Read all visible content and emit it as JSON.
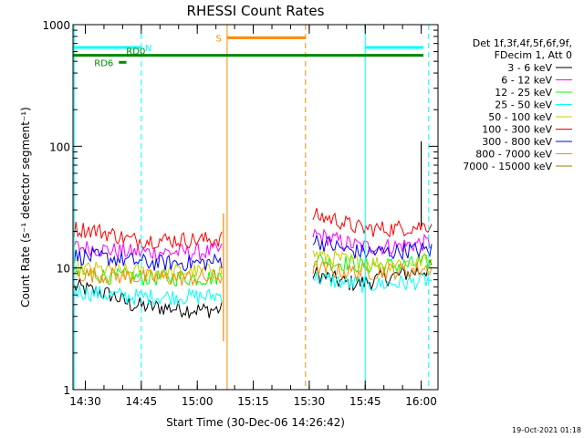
{
  "chart_data": {
    "type": "line",
    "title": "RHESSI Count Rates",
    "xlabel": "Start Time (30-Dec-06 14:26:42)",
    "ylabel": "Count Rate (s⁻¹ detector segment⁻¹)",
    "yscale": "log",
    "ylim": [
      1,
      1000
    ],
    "xlim": [
      "14:26:42",
      "16:04:30"
    ],
    "x_ticks": [
      "14:30",
      "14:45",
      "15:00",
      "15:15",
      "15:30",
      "15:45",
      "16:00"
    ],
    "y_ticks": [
      "1",
      "10",
      "100",
      "1000"
    ],
    "legend_header": [
      "Det 1f,3f,4f,5f,6f,9f,",
      "FDecim 1, Att 0"
    ],
    "legend_position": "right",
    "timestamp": "19-Oct-2021 01:18",
    "data_gap": [
      "15:07",
      "15:29"
    ],
    "series": [
      {
        "name": "3 - 6 keV",
        "color": "#000000",
        "values_before_gap": [
          7.0,
          6.5,
          6.0,
          5.0,
          4.8,
          4.7,
          4.6,
          4.5,
          4.6
        ],
        "values_after_gap": [
          9.0,
          8.5,
          8.0,
          7.5,
          7.5,
          8.0,
          8.5,
          9.0,
          9.5,
          10.0
        ]
      },
      {
        "name": "6 - 12 keV",
        "color": "#ff00ff",
        "values_before_gap": [
          15,
          14.5,
          14,
          13.5,
          13.5,
          13.5,
          13.5,
          13.5,
          14
        ],
        "values_after_gap": [
          19,
          18,
          17,
          16,
          15,
          15,
          15,
          15.5,
          16,
          16
        ]
      },
      {
        "name": "12 - 25 keV",
        "color": "#00ff00",
        "values_before_gap": [
          9,
          8.8,
          8.5,
          8.5,
          8.3,
          8.3,
          8.3,
          8.3,
          8.5
        ],
        "values_after_gap": [
          12,
          11.5,
          11,
          11,
          10.5,
          10.5,
          10.5,
          10.5,
          11,
          11
        ]
      },
      {
        "name": "25 - 50 keV",
        "color": "#00ffff",
        "values_before_gap": [
          6.5,
          6.2,
          6.0,
          5.8,
          5.8,
          5.8,
          5.8,
          5.8,
          6.0
        ],
        "values_after_gap": [
          8.5,
          8.0,
          7.8,
          7.5,
          7.3,
          7.3,
          7.5,
          7.5,
          7.8,
          8.0
        ]
      },
      {
        "name": "50 - 100 keV",
        "color": "#cccc00",
        "values_before_gap": [
          10,
          9.7,
          9.5,
          9.3,
          9.3,
          9.3,
          9.3,
          9.3,
          9.5
        ],
        "values_after_gap": [
          13,
          12.5,
          12,
          11.5,
          11,
          11,
          11,
          11,
          11.5,
          11.5
        ]
      },
      {
        "name": "100 - 300 keV",
        "color": "#ff0000",
        "values_before_gap": [
          21,
          20.5,
          19,
          17,
          17,
          17,
          17,
          17,
          17.5
        ],
        "values_after_gap": [
          27,
          26,
          25,
          23,
          21,
          21,
          21,
          21.5,
          22,
          23
        ]
      },
      {
        "name": "300 - 800 keV",
        "color": "#0000ff",
        "values_before_gap": [
          12.5,
          12.3,
          12,
          11.5,
          11,
          11,
          11,
          11,
          11.5
        ],
        "values_after_gap": [
          17,
          16,
          15,
          14,
          13.5,
          13.5,
          13.5,
          14,
          14,
          14
        ]
      },
      {
        "name": "800 - 7000 keV",
        "color": "#ff8800",
        "values_before_gap": [
          9,
          8.8,
          8.6,
          8.5,
          8.3,
          8.3,
          8.3,
          8.3,
          8.4
        ],
        "values_after_gap": [
          10,
          9.8,
          9.5,
          9.3,
          9.3,
          9.3,
          9.5,
          9.5,
          9.8,
          10
        ]
      },
      {
        "name": "7000 - 15000 keV",
        "color": "#aa7700",
        "values_before_gap": [],
        "values_after_gap": []
      }
    ],
    "times_before_gap": [
      "14:27",
      "14:32",
      "14:37",
      "14:42",
      "14:47",
      "14:52",
      "14:57",
      "15:02",
      "15:07"
    ],
    "times_after_gap": [
      "15:31",
      "15:34",
      "15:37",
      "15:40",
      "15:44",
      "15:48",
      "15:52",
      "15:56",
      "16:00",
      "16:03"
    ],
    "spikes": [
      {
        "time": "15:07",
        "series": "800 - 7000 keV",
        "values": [
          2.5,
          28
        ],
        "color": "#ff8800"
      },
      {
        "time": "16:00",
        "series": "3 - 6 keV",
        "values": [
          22,
          110
        ],
        "color": "#000000"
      }
    ],
    "flag_bars": [
      {
        "label": "N",
        "color": "#00ffff",
        "y": 650,
        "start": "14:26:42",
        "end": "14:45",
        "label_side": "right"
      },
      {
        "label": "N",
        "color": "#00ffff",
        "y": 650,
        "start": "15:45",
        "end": "16:03",
        "label_side": "none"
      },
      {
        "label": "S",
        "color": "#ff8800",
        "y": 780,
        "start": "15:08",
        "end": "15:29",
        "label_side": "left"
      },
      {
        "label": "RD0",
        "color": "#008800",
        "y": 560,
        "start": "14:26:42",
        "end": "16:04:00",
        "label_side": "above-left"
      },
      {
        "label": "RD6",
        "color": "#008800",
        "y": 490,
        "start": "14:39",
        "end": "14:41",
        "label_side": "left"
      }
    ],
    "vertical_markers": [
      {
        "time": "14:27",
        "color": "#00ffff",
        "style": "solid"
      },
      {
        "time": "14:45",
        "color": "#00ffff",
        "style": "dashed"
      },
      {
        "time": "15:08",
        "color": "#ff8800",
        "style": "solid"
      },
      {
        "time": "15:29",
        "color": "#ff8800",
        "style": "dashed"
      },
      {
        "time": "15:45",
        "color": "#00ffff",
        "style": "solid"
      },
      {
        "time": "16:02",
        "color": "#00ffff",
        "style": "dashed"
      }
    ]
  }
}
